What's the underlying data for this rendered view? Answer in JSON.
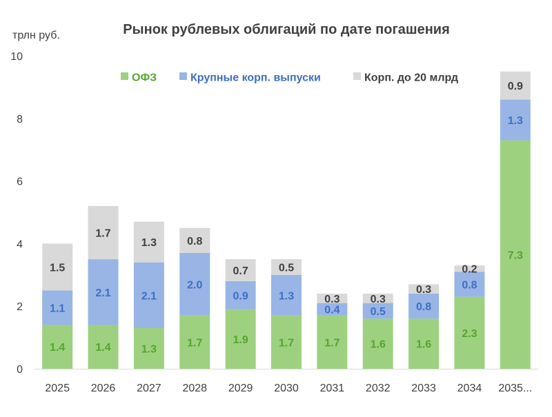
{
  "chart_data": {
    "type": "bar",
    "stacked": true,
    "title": "Рынок рублевых облигаций по дате погашения",
    "unit_label": "трлн руб.",
    "ylim": [
      0,
      10
    ],
    "yticks": [
      "0",
      "2",
      "4",
      "6",
      "8",
      "10"
    ],
    "grid": false,
    "legend_position": "top",
    "categories": [
      "2025",
      "2026",
      "2027",
      "2028",
      "2029",
      "2030",
      "2031",
      "2032",
      "2033",
      "2034",
      "2035..."
    ],
    "series": [
      {
        "name": "ОФЗ",
        "color": "#9dd17f",
        "label_color": "#55a42f",
        "values": [
          1.4,
          1.4,
          1.3,
          1.7,
          1.9,
          1.7,
          1.7,
          1.6,
          1.6,
          2.3,
          7.3
        ],
        "labels": [
          "1.4",
          "1.4",
          "1.3",
          "1.7",
          "1.9",
          "1.7",
          "1.7",
          "1.6",
          "1.6",
          "2.3",
          "7.3"
        ]
      },
      {
        "name": "Крупные корп. выпуски",
        "color": "#98b5e6",
        "label_color": "#3e6fc3",
        "values": [
          1.1,
          2.1,
          2.1,
          2.0,
          0.9,
          1.3,
          0.4,
          0.5,
          0.8,
          0.8,
          1.3
        ],
        "labels": [
          "1.1",
          "2.1",
          "2.1",
          "2.0",
          "0.9",
          "1.3",
          "0.4",
          "0.5",
          "0.8",
          "0.8",
          "1.3"
        ]
      },
      {
        "name": "Корп. до 20 млрд",
        "color": "#d9d9d9",
        "label_color": "#404040",
        "values": [
          1.5,
          1.7,
          1.3,
          0.8,
          0.7,
          0.5,
          0.3,
          0.3,
          0.3,
          0.2,
          0.9
        ],
        "labels": [
          "1.5",
          "1.7",
          "1.3",
          "0.8",
          "0.7",
          "0.5",
          "0.3",
          "0.3",
          "0.3",
          "0.2",
          "0.9"
        ]
      }
    ]
  }
}
